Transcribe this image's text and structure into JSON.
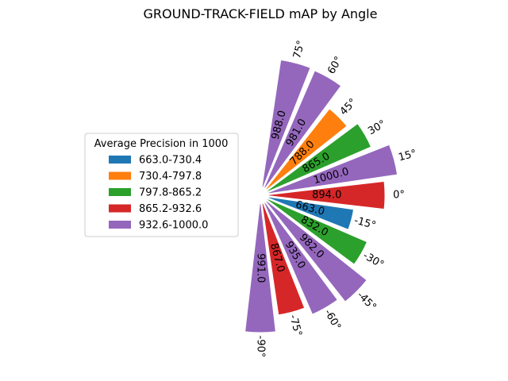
{
  "chart_data": {
    "type": "bar",
    "polar": true,
    "title": "GROUND-TRACK-FIELD mAP by Angle",
    "categories": [
      "75°",
      "60°",
      "45°",
      "30°",
      "15°",
      "0°",
      "-15°",
      "-30°",
      "-45°",
      "-60°",
      "-75°",
      "-90°"
    ],
    "angles_deg": [
      75,
      60,
      45,
      30,
      15,
      0,
      -15,
      -30,
      -45,
      -60,
      -75,
      -90
    ],
    "values": [
      988.0,
      981.0,
      788.0,
      865.0,
      1000.0,
      894.0,
      663.0,
      832.0,
      982.0,
      935.0,
      867.0,
      991.0
    ],
    "value_labels": [
      "988.0",
      "981.0",
      "788.0",
      "865.0",
      "1000.0",
      "894.0",
      "663.0",
      "832.0",
      "982.0",
      "935.0",
      "867.0",
      "991.0"
    ],
    "bin_index": [
      4,
      4,
      1,
      2,
      4,
      3,
      0,
      2,
      4,
      4,
      3,
      4
    ],
    "legend": {
      "title": "Average Precision in 1000",
      "placement": "center-left",
      "entries": [
        {
          "label": "663.0-730.4",
          "color": "#1f77b4"
        },
        {
          "label": "730.4-797.8",
          "color": "#ff7f0e"
        },
        {
          "label": "797.8-865.2",
          "color": "#2ca02c"
        },
        {
          "label": "865.2-932.6",
          "color": "#d62728"
        },
        {
          "label": "932.6-1000.0",
          "color": "#9467bd"
        }
      ]
    }
  }
}
